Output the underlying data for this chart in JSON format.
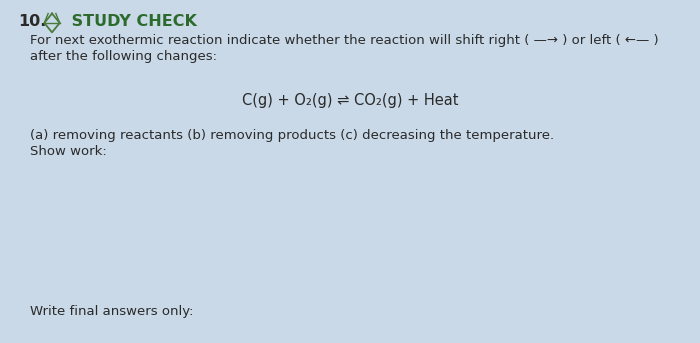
{
  "background_color": "#c9d9e8",
  "number_text": "10.",
  "icon_color": "#4a7a3a",
  "title_text": " STUDY CHECK",
  "title_color": "#2d6b2d",
  "title_fontsize": 11.5,
  "body_color": "#2a2a2a",
  "body_fontsize": 9.5,
  "line1": "For next exothermic reaction indicate whether the reaction will shift right ( —→ ) or left ( ←— )",
  "line2": "after the following changes:",
  "equation": "C(g) + O₂(g) ⇌ CO₂(g) + Heat",
  "line3": "(a) removing reactants (b) removing products (c) decreasing the temperature.",
  "line4": "Show work:",
  "line5": "Write final answers only:",
  "eq_fontsize": 10.5
}
